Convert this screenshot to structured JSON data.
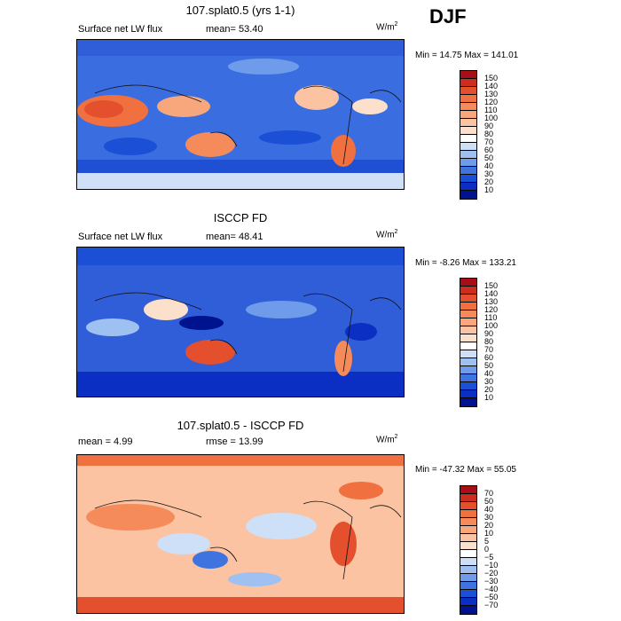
{
  "season": "DJF",
  "units": {
    "base": "W/m",
    "exp": "2"
  },
  "panels": [
    {
      "id": "model",
      "title": "107.splat0.5 (yrs 1-1)",
      "field": "Surface net LW flux",
      "stat1": "mean=  53.40",
      "stat2": "",
      "minmax": "Min =  14.75 Max = 141.01",
      "cbar": {
        "labels": [
          "150",
          "140",
          "130",
          "120",
          "110",
          "100",
          "90",
          "80",
          "70",
          "60",
          "50",
          "40",
          "30",
          "20",
          "10"
        ],
        "colors": [
          "#a50f15",
          "#cb2d1f",
          "#e4502e",
          "#f0703f",
          "#f58b5a",
          "#f8a77c",
          "#fbc3a2",
          "#fde0cc",
          "#ffffff",
          "#cde0f7",
          "#9fc1f1",
          "#6e9cea",
          "#3f74e0",
          "#1b4fd6",
          "#0a2fc2",
          "#00138f"
        ]
      }
    },
    {
      "id": "obs",
      "title": "ISCCP FD",
      "field": "Surface net LW flux",
      "stat1": "mean=  48.41",
      "stat2": "",
      "minmax": "Min =  -8.26 Max = 133.21",
      "cbar": {
        "labels": [
          "150",
          "140",
          "130",
          "120",
          "110",
          "100",
          "90",
          "80",
          "70",
          "60",
          "50",
          "40",
          "30",
          "20",
          "10"
        ],
        "colors": [
          "#a50f15",
          "#cb2d1f",
          "#e4502e",
          "#f0703f",
          "#f58b5a",
          "#f8a77c",
          "#fbc3a2",
          "#fde0cc",
          "#ffffff",
          "#cde0f7",
          "#9fc1f1",
          "#6e9cea",
          "#3f74e0",
          "#1b4fd6",
          "#0a2fc2",
          "#00138f"
        ]
      }
    },
    {
      "id": "diff",
      "title": "107.splat0.5 - ISCCP FD",
      "field": "",
      "stat1": "mean =   4.99",
      "stat2": "rmse =  13.99",
      "minmax": "Min = -47.32 Max =  55.05",
      "cbar": {
        "labels": [
          "70",
          "50",
          "40",
          "30",
          "20",
          "10",
          "5",
          "0",
          "−5",
          "−10",
          "−20",
          "−30",
          "−40",
          "−50",
          "−70"
        ],
        "colors": [
          "#a50f15",
          "#cb2d1f",
          "#e4502e",
          "#f0703f",
          "#f58b5a",
          "#f8a77c",
          "#fbc3a2",
          "#fde0cc",
          "#ffffff",
          "#cde0f7",
          "#9fc1f1",
          "#6e9cea",
          "#3f74e0",
          "#1b4fd6",
          "#0a2fc2",
          "#00138f"
        ]
      }
    }
  ]
}
